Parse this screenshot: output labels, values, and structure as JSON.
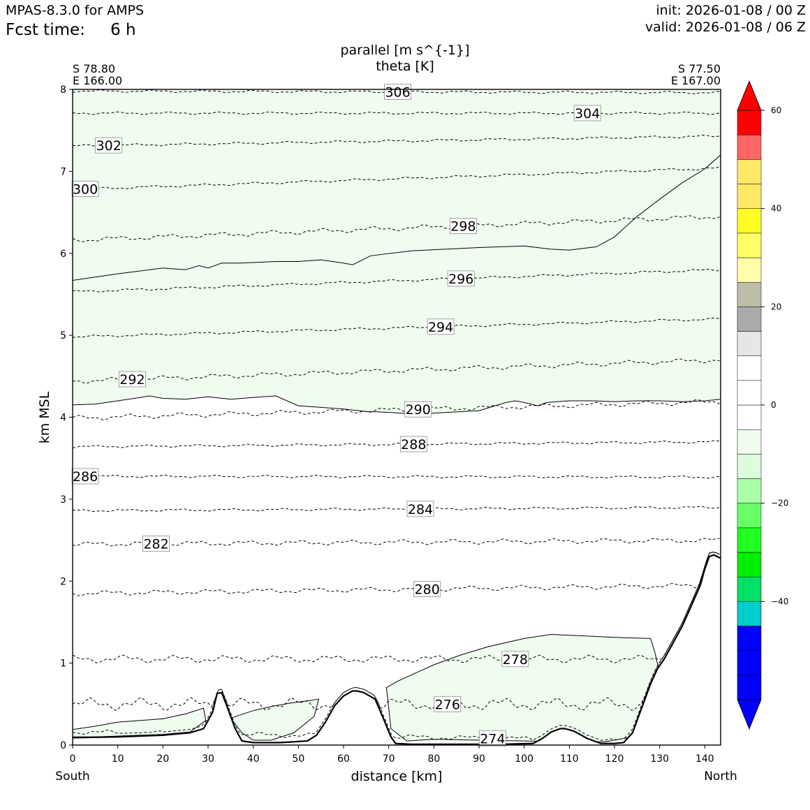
{
  "header": {
    "model": "MPAS-8.3.0 for AMPS",
    "fcst_label": "Fcst time:",
    "fcst_value": "6 h",
    "init": "init: 2026-01-08 / 00 Z",
    "valid": "valid: 2026-01-08 / 06 Z"
  },
  "chart_data": {
    "type": "cross-section contour",
    "title_line1": "parallel [m s^{-1}]",
    "title_line2": "theta [K]",
    "left_point": {
      "lat": "S 78.80",
      "lon": "E 166.00"
    },
    "right_point": {
      "lat": "S 77.50",
      "lon": "E 167.00"
    },
    "xlabel": "distance [km]",
    "ylabel": "km MSL",
    "x_left_label": "South",
    "x_right_label": "North",
    "xlim": [
      0,
      143.5
    ],
    "ylim": [
      0,
      8
    ],
    "x_ticks": [
      0,
      10,
      20,
      30,
      40,
      50,
      60,
      70,
      80,
      90,
      100,
      110,
      120,
      130,
      140
    ],
    "y_ticks": [
      0,
      1,
      2,
      3,
      4,
      5,
      6,
      7,
      8
    ],
    "terrain": {
      "x": [
        0,
        10,
        20,
        26,
        29,
        31,
        32,
        33,
        34,
        36,
        37.5,
        40,
        46,
        52,
        54,
        56,
        58,
        60,
        62,
        63,
        64.5,
        67,
        69,
        70.5,
        71.5,
        75,
        85,
        95,
        102,
        104,
        106,
        108,
        109,
        111,
        114,
        117,
        120,
        122,
        124,
        126,
        128,
        129.5,
        131,
        133,
        135,
        137,
        139,
        140,
        141,
        142,
        143.5
      ],
      "y": [
        0.09,
        0.1,
        0.12,
        0.15,
        0.2,
        0.4,
        0.63,
        0.64,
        0.5,
        0.2,
        0.05,
        0.03,
        0.03,
        0.05,
        0.12,
        0.28,
        0.48,
        0.6,
        0.66,
        0.66,
        0.64,
        0.56,
        0.3,
        0.1,
        0.02,
        0.01,
        0.01,
        0.01,
        0.02,
        0.08,
        0.16,
        0.2,
        0.2,
        0.17,
        0.08,
        0.02,
        0.02,
        0.03,
        0.15,
        0.45,
        0.75,
        0.93,
        1.05,
        1.25,
        1.45,
        1.7,
        1.95,
        2.15,
        2.3,
        2.32,
        2.28
      ]
    },
    "isentropes": [
      {
        "theta": 274,
        "y": 0.16,
        "label_x": 93,
        "tilt": -0.12,
        "wave": 0.02
      },
      {
        "theta": 276,
        "y": 0.5,
        "label_x": 83,
        "tilt": 0.0,
        "wave": 0.05
      },
      {
        "theta": 278,
        "y": 1.05,
        "label_x": 98,
        "tilt": 0.0,
        "wave": 0.03
      },
      {
        "theta": 280,
        "y": 1.85,
        "label_x": 78.5,
        "tilt": 0.1,
        "wave": 0.02
      },
      {
        "theta": 282,
        "y": 2.45,
        "label_x": 18.5,
        "tilt": 0.05,
        "wave": 0.02
      },
      {
        "theta": 284,
        "y": 2.86,
        "label_x": 77,
        "tilt": 0.04,
        "wave": 0.01
      },
      {
        "theta": 286,
        "y": 3.28,
        "label_x": 2.8,
        "tilt": -0.01,
        "wave": 0.01
      },
      {
        "theta": 288,
        "y": 3.64,
        "label_x": 75.5,
        "tilt": 0.06,
        "wave": 0.01
      },
      {
        "theta": 290,
        "y": 3.99,
        "label_x": 76.5,
        "tilt": 0.2,
        "wave": 0.02
      },
      {
        "theta": 292,
        "y": 4.44,
        "label_x": 13.2,
        "tilt": 0.26,
        "wave": 0.02
      },
      {
        "theta": 294,
        "y": 4.98,
        "label_x": 81.5,
        "tilt": 0.22,
        "wave": 0.01
      },
      {
        "theta": 296,
        "y": 5.53,
        "label_x": 86,
        "tilt": 0.27,
        "wave": 0.01
      },
      {
        "theta": 298,
        "y": 6.16,
        "label_x": 86.5,
        "tilt": 0.29,
        "wave": 0.02
      },
      {
        "theta": 300,
        "y": 6.78,
        "label_x": 2.8,
        "tilt": 0.26,
        "wave": 0.01
      },
      {
        "theta": 302,
        "y": 7.31,
        "label_x": 8,
        "tilt": 0.12,
        "wave": 0.01
      },
      {
        "theta": 304,
        "y": 7.71,
        "label_x": 114,
        "tilt": 0.0,
        "wave": 0.01
      },
      {
        "theta": 306,
        "y": 7.98,
        "label_x": 72,
        "tilt": -0.02,
        "wave": 0.01
      }
    ],
    "wind_bands": [
      {
        "range": "-10 to -5",
        "color": "#ddfbdd",
        "lower_x": [
          0,
          10,
          20,
          25,
          28,
          30,
          33,
          37,
          45,
          50,
          55,
          60,
          62,
          66,
          75,
          90,
          100,
          106,
          110,
          116,
          120,
          125,
          130,
          135,
          140,
          143.5
        ],
        "lower_y": [
          5.67,
          5.75,
          5.82,
          5.8,
          5.85,
          5.82,
          5.88,
          5.88,
          5.9,
          5.9,
          5.92,
          5.88,
          5.86,
          5.97,
          6.03,
          6.07,
          6.09,
          6.05,
          6.04,
          6.08,
          6.2,
          6.45,
          6.66,
          6.86,
          7.03,
          7.2
        ]
      },
      {
        "range": "-5 to 0",
        "color": "#f0fcf0",
        "lower_x": [
          0,
          5,
          10,
          15,
          17,
          20,
          25,
          30,
          35,
          40,
          45,
          50,
          55,
          60,
          65,
          70,
          75,
          80,
          90,
          96,
          98,
          100,
          103,
          105,
          110,
          115,
          120,
          125,
          130,
          135,
          140,
          143.5
        ],
        "lower_y": [
          4.15,
          4.16,
          4.2,
          4.24,
          4.26,
          4.23,
          4.22,
          4.25,
          4.22,
          4.24,
          4.26,
          4.14,
          4.12,
          4.1,
          4.07,
          4.06,
          4.04,
          4.05,
          4.08,
          4.18,
          4.2,
          4.18,
          4.14,
          4.18,
          4.2,
          4.2,
          4.19,
          4.2,
          4.2,
          4.19,
          4.2,
          4.22
        ]
      }
    ],
    "low_level_regions": [
      {
        "x": [
          69.5,
          72,
          76,
          80,
          86,
          92,
          100,
          106,
          110,
          114,
          118,
          122,
          128,
          129,
          130.5,
          131,
          128.5,
          124,
          118,
          108,
          100,
          90,
          80,
          74,
          70.5,
          69.5
        ],
        "y": [
          0.7,
          0.78,
          0.88,
          0.98,
          1.1,
          1.2,
          1.3,
          1.35,
          1.34,
          1.33,
          1.32,
          1.31,
          1.3,
          1.12,
          0.75,
          0.6,
          0.35,
          0.1,
          0.04,
          0.04,
          0.05,
          0.06,
          0.07,
          0.05,
          0.2,
          0.7
        ]
      },
      {
        "x": [
          35,
          40,
          44,
          48,
          52,
          54.5,
          53.5,
          49,
          44,
          40,
          37.5,
          35
        ],
        "y": [
          0.33,
          0.42,
          0.47,
          0.51,
          0.54,
          0.56,
          0.35,
          0.15,
          0.06,
          0.06,
          0.15,
          0.33
        ]
      },
      {
        "x": [
          0,
          5,
          10,
          15,
          20,
          25,
          29,
          29.5,
          26,
          20,
          15,
          10,
          5,
          0
        ],
        "y": [
          0.19,
          0.23,
          0.28,
          0.3,
          0.32,
          0.38,
          0.45,
          0.3,
          0.16,
          0.13,
          0.12,
          0.11,
          0.1,
          0.1
        ]
      }
    ],
    "colorbar": {
      "label": "parallel [m s^{-1}]",
      "levels": [
        -60,
        -55,
        -50,
        -45,
        -40,
        -35,
        -30,
        -25,
        -20,
        -15,
        -10,
        -5,
        0,
        5,
        10,
        15,
        20,
        25,
        30,
        35,
        40,
        45,
        50,
        55,
        60
      ],
      "colors": [
        "#0000ff",
        "#0000ff",
        "#0000ff",
        "#00cccc",
        "#00e066",
        "#00ee00",
        "#22ff22",
        "#66ff66",
        "#aaffaa",
        "#ddfbdd",
        "#f0fcf0",
        "#ffffff",
        "#ffffff",
        "#ffffff",
        "#e6e6e6",
        "#aaaaaa",
        "#bebea8",
        "#ffffaa",
        "#ffff66",
        "#ffff22",
        "#ffe866",
        "#ffe866",
        "#ff6666",
        "#ff0000"
      ],
      "under_color": "#0000ff",
      "over_color": "#ff0000",
      "tick_values": [
        60,
        40,
        20,
        0,
        -20,
        -40
      ],
      "tick_labels": [
        "60",
        "40",
        "20",
        "0",
        "−20",
        "−40"
      ]
    }
  }
}
